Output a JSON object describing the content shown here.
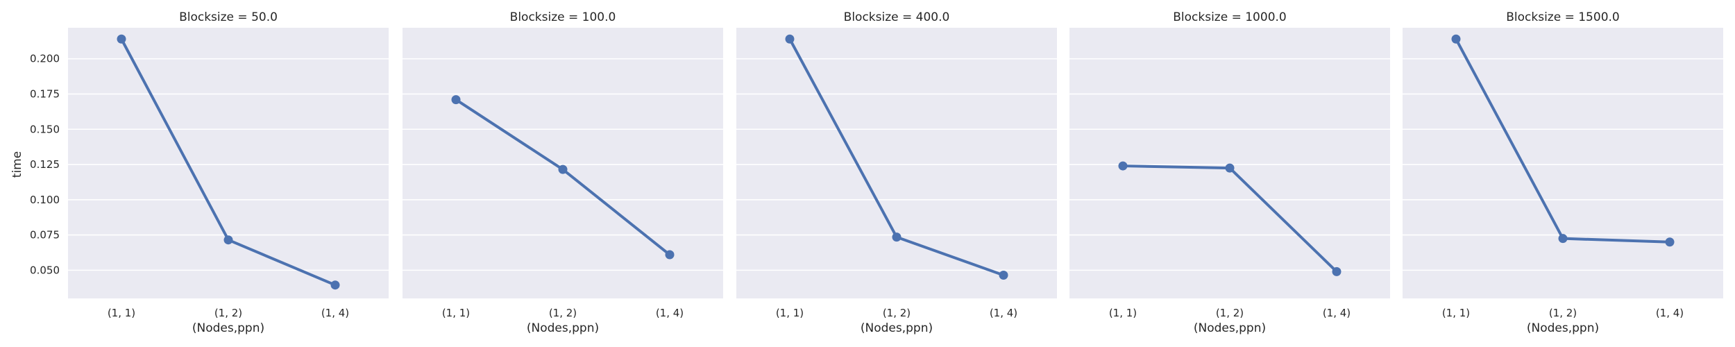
{
  "chart_data": {
    "type": "line",
    "facet_variable": "Blocksize",
    "xlabel": "(Nodes,ppn)",
    "ylabel": "time",
    "categories": [
      "(1, 1)",
      "(1, 2)",
      "(1, 4)"
    ],
    "ylim": [
      0.03,
      0.222
    ],
    "yticks": [
      0.05,
      0.075,
      0.1,
      0.125,
      0.15,
      0.175,
      0.2
    ],
    "ytick_labels": [
      "0.050",
      "0.075",
      "0.100",
      "0.125",
      "0.150",
      "0.175",
      "0.200"
    ],
    "grid": true,
    "color": "#4c72b0",
    "panels": [
      {
        "title": "Blocksize = 50.0",
        "values": [
          0.214,
          0.0715,
          0.0395
        ]
      },
      {
        "title": "Blocksize = 100.0",
        "values": [
          0.171,
          0.1215,
          0.061
        ]
      },
      {
        "title": "Blocksize = 400.0",
        "values": [
          0.214,
          0.0735,
          0.0465
        ]
      },
      {
        "title": "Blocksize = 1000.0",
        "values": [
          0.124,
          0.1225,
          0.049
        ]
      },
      {
        "title": "Blocksize = 1500.0",
        "values": [
          0.214,
          0.0725,
          0.07
        ]
      }
    ]
  }
}
